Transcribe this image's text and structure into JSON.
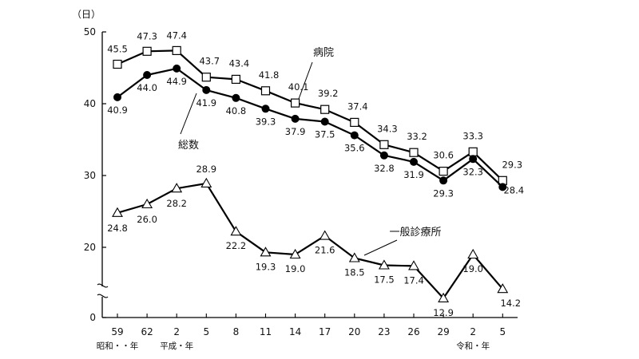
{
  "chart_data": {
    "type": "line",
    "y_unit": "（日）",
    "ylim": [
      0,
      50
    ],
    "y_ticks": [
      0,
      20,
      30,
      40,
      50
    ],
    "axis_break": true,
    "grid": false,
    "categories": [
      "59",
      "62",
      "2",
      "5",
      "8",
      "11",
      "14",
      "17",
      "20",
      "23",
      "26",
      "29",
      "2",
      "5"
    ],
    "era_labels": [
      {
        "index": 0,
        "text": "昭和・・年"
      },
      {
        "index": 2,
        "text": "平成・年"
      },
      {
        "index": 12,
        "text": "令和・年"
      }
    ],
    "series": [
      {
        "name": "病院",
        "marker": "open-square",
        "values": [
          45.5,
          47.3,
          47.4,
          43.7,
          43.4,
          41.8,
          40.1,
          39.2,
          37.4,
          34.3,
          33.2,
          30.6,
          33.3,
          29.3
        ]
      },
      {
        "name": "総数",
        "marker": "filled-circle",
        "values": [
          40.9,
          44.0,
          44.9,
          41.9,
          40.8,
          39.3,
          37.9,
          37.5,
          35.6,
          32.8,
          31.9,
          29.3,
          32.3,
          28.4
        ]
      },
      {
        "name": "一般診療所",
        "marker": "open-triangle",
        "values": [
          24.8,
          26.0,
          28.2,
          28.9,
          22.2,
          19.3,
          19.0,
          21.6,
          18.5,
          17.5,
          17.4,
          12.9,
          19.0,
          14.2
        ]
      }
    ]
  }
}
